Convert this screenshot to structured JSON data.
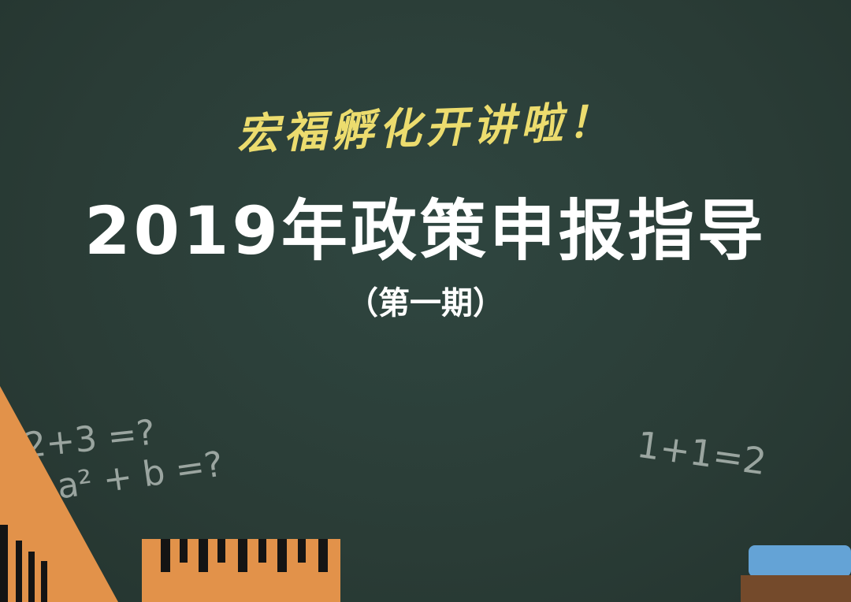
{
  "poster": {
    "tagline": "宏福孵化开讲啦！",
    "title": "2019年政策申报指导",
    "subtitle": "（第一期）"
  },
  "chalkboard": {
    "equations": [
      "2+3 =?",
      "a² + b =?",
      "1+1=2"
    ]
  },
  "colors": {
    "board": "#2b3d37",
    "tagline": "#ecdc6e",
    "title": "#ffffff",
    "triangle": "#e2924a",
    "ruler": "#e2924a",
    "book_blue": "#64a3d6",
    "book_brown": "#744a2b"
  }
}
